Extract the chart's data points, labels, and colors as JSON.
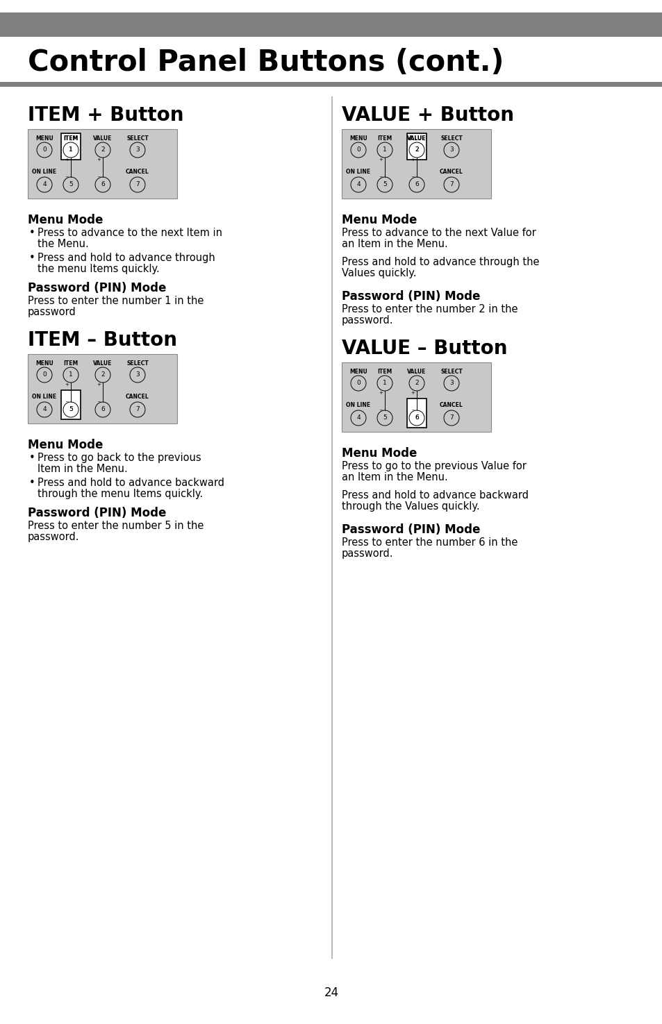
{
  "title": "Control Panel Buttons (cont.)",
  "title_bar_color": "#808080",
  "page_bg": "#ffffff",
  "page_number": "24",
  "sections": {
    "item_plus": {
      "title": "ITEM + Button",
      "highlight": 1,
      "col": "left",
      "menu_bullets": [
        "Press to advance to the next Item in\nthe Menu.",
        "Press and hold to advance through\nthe menu Items quickly."
      ],
      "pin_text": "Press to enter the number 1 in the\npassword"
    },
    "value_plus": {
      "title": "VALUE + Button",
      "highlight": 2,
      "col": "right",
      "menu_texts": [
        "Press to advance to the next Value for\nan Item in the Menu.",
        "Press and hold to advance through the\nValues quickly."
      ],
      "pin_text": "Press to enter the number 2 in the\npassword."
    },
    "item_minus": {
      "title": "ITEM – Button",
      "highlight": 5,
      "col": "left",
      "menu_bullets": [
        "Press to go back to the previous\nItem in the Menu.",
        "Press and hold to advance backward\nthrough the menu Items quickly."
      ],
      "pin_text": "Press to enter the number 5 in the\npassword."
    },
    "value_minus": {
      "title": "VALUE – Button",
      "highlight": 6,
      "col": "right",
      "menu_texts": [
        "Press to go to the previous Value for\nan Item in the Menu.",
        "Press and hold to advance backward\nthrough the Values quickly."
      ],
      "pin_text": "Press to enter the number 6 in the\npassword."
    }
  }
}
